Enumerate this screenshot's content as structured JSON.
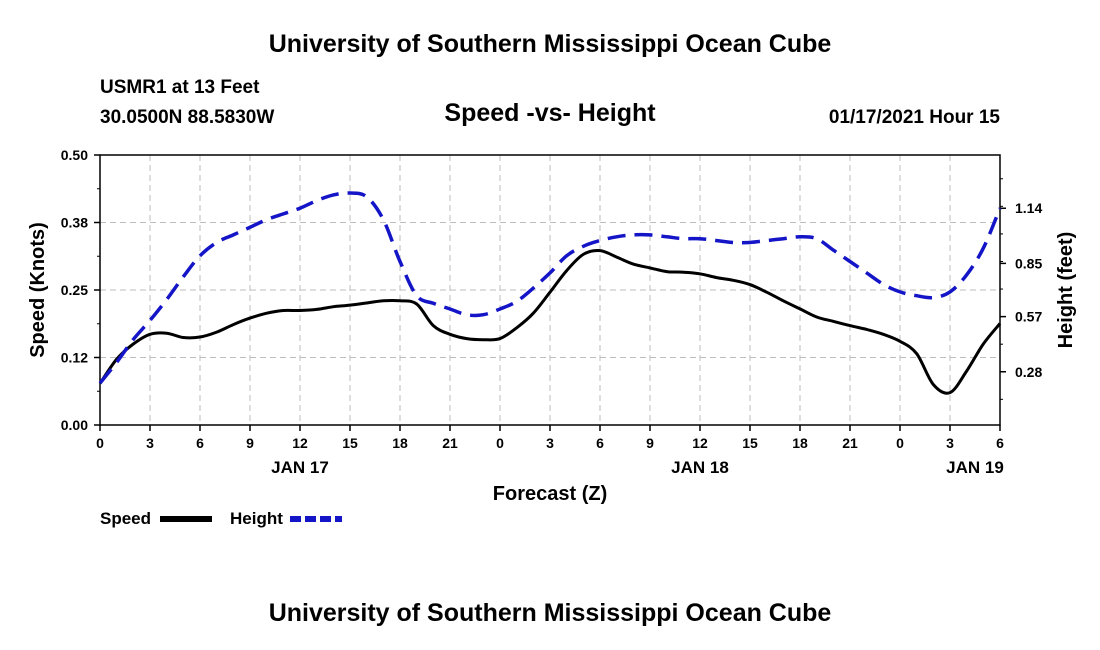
{
  "header": {
    "title": "University of Southern Mississippi Ocean Cube",
    "station": "USMR1 at 13 Feet",
    "coords": "30.0500N 88.5830W",
    "subtitle": "Speed -vs- Height",
    "datetime": "01/17/2021 Hour 15"
  },
  "footer": {
    "title": "University of Southern Mississippi Ocean Cube"
  },
  "chart_data": {
    "type": "line",
    "title": "Speed -vs- Height",
    "xlabel": "Forecast (Z)",
    "ylabel_left": "Speed (Knots)",
    "ylabel_right": "Height (feet)",
    "grid": true,
    "xlim": [
      0,
      54
    ],
    "x_ticks": [
      0,
      3,
      6,
      9,
      12,
      15,
      18,
      21,
      24,
      27,
      30,
      33,
      36,
      39,
      42,
      45,
      48,
      51,
      54
    ],
    "x_tick_labels": [
      "0",
      "3",
      "6",
      "9",
      "12",
      "15",
      "18",
      "21",
      "0",
      "3",
      "6",
      "9",
      "12",
      "15",
      "18",
      "21",
      "0",
      "3",
      "6"
    ],
    "date_labels": [
      {
        "text": "JAN 17",
        "x": 12
      },
      {
        "text": "JAN 18",
        "x": 36
      },
      {
        "text": "JAN 19",
        "x": 52.5
      }
    ],
    "ylim_left": [
      0,
      0.5
    ],
    "y_ticks_left": [
      0,
      0.125,
      0.25,
      0.375,
      0.5
    ],
    "y_tick_labels_left": [
      "0.00",
      "0.12",
      "0.25",
      "0.38",
      "0.50"
    ],
    "ylim_right": [
      0.0,
      1.42
    ],
    "y_ticks_right": [
      0.28,
      0.57,
      0.85,
      1.14
    ],
    "y_tick_labels_right": [
      "0.28",
      "0.57",
      "0.85",
      "1.14"
    ],
    "series": [
      {
        "name": "Speed",
        "axis": "left",
        "color": "#000000",
        "style": "solid",
        "x": [
          0,
          1,
          2,
          3,
          4,
          5,
          6,
          7,
          8,
          9,
          10,
          11,
          12,
          13,
          14,
          15,
          16,
          17,
          18,
          19,
          20,
          21,
          22,
          23,
          24,
          25,
          26,
          27,
          28,
          29,
          30,
          31,
          32,
          33,
          34,
          35,
          36,
          37,
          38,
          39,
          40,
          41,
          42,
          43,
          44,
          45,
          46,
          47,
          48,
          49,
          50,
          51,
          52,
          53,
          54
        ],
        "values": [
          0.077,
          0.122,
          0.15,
          0.168,
          0.17,
          0.162,
          0.163,
          0.172,
          0.186,
          0.198,
          0.207,
          0.212,
          0.212,
          0.214,
          0.219,
          0.222,
          0.226,
          0.23,
          0.23,
          0.224,
          0.184,
          0.168,
          0.16,
          0.158,
          0.16,
          0.18,
          0.207,
          0.246,
          0.286,
          0.316,
          0.323,
          0.311,
          0.298,
          0.291,
          0.284,
          0.283,
          0.28,
          0.273,
          0.268,
          0.26,
          0.246,
          0.23,
          0.215,
          0.2,
          0.192,
          0.184,
          0.177,
          0.168,
          0.155,
          0.132,
          0.075,
          0.06,
          0.1,
          0.15,
          0.188
        ]
      },
      {
        "name": "Height",
        "axis": "right",
        "color": "#1515c8",
        "style": "dashed",
        "x": [
          0,
          1,
          2,
          3,
          4,
          5,
          6,
          7,
          8,
          9,
          10,
          11,
          12,
          13,
          14,
          15,
          16,
          17,
          18,
          19,
          20,
          21,
          22,
          23,
          24,
          25,
          26,
          27,
          28,
          29,
          30,
          31,
          32,
          33,
          34,
          35,
          36,
          37,
          38,
          39,
          40,
          41,
          42,
          43,
          44,
          45,
          46,
          47,
          48,
          49,
          50,
          51,
          52,
          53,
          54
        ],
        "values": [
          0.22,
          0.33,
          0.45,
          0.55,
          0.66,
          0.78,
          0.89,
          0.96,
          1.0,
          1.04,
          1.08,
          1.11,
          1.14,
          1.18,
          1.21,
          1.22,
          1.2,
          1.08,
          0.86,
          0.68,
          0.64,
          0.61,
          0.58,
          0.58,
          0.61,
          0.65,
          0.72,
          0.8,
          0.89,
          0.94,
          0.97,
          0.99,
          1.0,
          1.0,
          0.99,
          0.98,
          0.98,
          0.97,
          0.96,
          0.96,
          0.97,
          0.98,
          0.99,
          0.98,
          0.92,
          0.86,
          0.8,
          0.74,
          0.7,
          0.68,
          0.67,
          0.7,
          0.79,
          0.93,
          1.14
        ]
      }
    ]
  },
  "legend": {
    "items": [
      {
        "label": "Speed",
        "color": "#000000"
      },
      {
        "label": "Height",
        "color": "#1515c8"
      }
    ]
  }
}
